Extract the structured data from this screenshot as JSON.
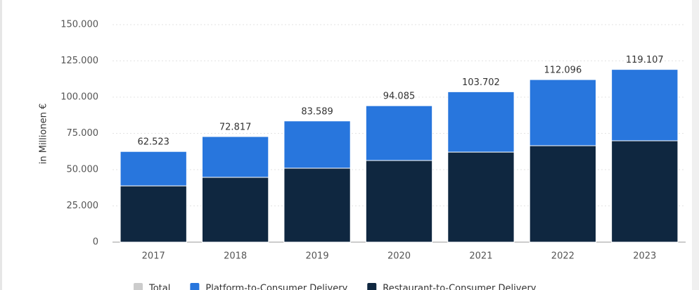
{
  "chart_data": {
    "type": "stacked_bar",
    "y_axis_label": "in Millionen €",
    "categories": [
      "2017",
      "2018",
      "2019",
      "2020",
      "2021",
      "2022",
      "2023"
    ],
    "series": [
      {
        "name": "Total",
        "color": "#cccccc",
        "hidden": true,
        "values": [
          62523,
          72817,
          83589,
          94085,
          103702,
          112096,
          119107
        ],
        "value_labels": [
          "62.523",
          "72.817",
          "83.589",
          "94.085",
          "103.702",
          "112.096",
          "119.107"
        ]
      },
      {
        "name": "Platform-to-Consumer Delivery",
        "color": "#2876dd",
        "values": [
          23723,
          28117,
          32589,
          37785,
          41602,
          45596,
          49207
        ]
      },
      {
        "name": "Restaurant-to-Consumer Delivery",
        "color": "#0f2740",
        "values": [
          38800,
          44700,
          51000,
          56300,
          62100,
          66500,
          69900
        ]
      }
    ],
    "stack_order": [
      2,
      1
    ],
    "ylim": [
      0,
      150000
    ],
    "yticks": [
      0,
      {
        "value": 25000,
        "label": "25.000"
      },
      {
        "value": 50000,
        "label": "50.000"
      },
      {
        "value": 75000,
        "label": "75.000"
      },
      {
        "value": 100000,
        "label": "100.000"
      },
      {
        "value": 125000,
        "label": "125.000"
      },
      {
        "value": 150000,
        "label": "150.000"
      }
    ],
    "grid": true
  }
}
